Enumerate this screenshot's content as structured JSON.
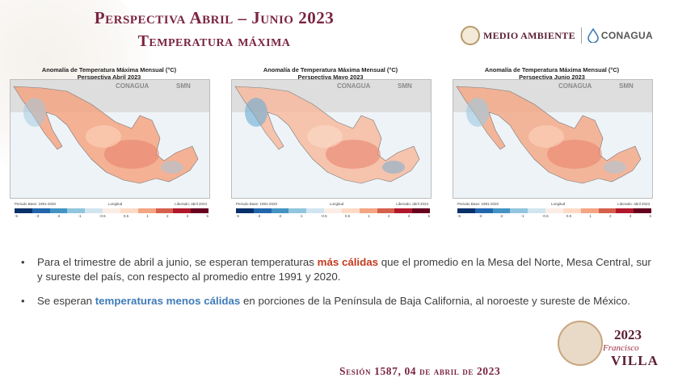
{
  "header": {
    "title_line1": "Perspectiva Abril – Junio 2023",
    "title_line2": "Temperatura máxima"
  },
  "logos": {
    "medio_ambiente": "MEDIO AMBIENTE",
    "conagua": "CONAGUA"
  },
  "maps": [
    {
      "title_line1": "Anomalía de Temperatura Máxima Mensual (°C)",
      "title_line2": "Perspectiva Abril 2023",
      "brand_left": "CONAGUA",
      "brand_right": "SMN",
      "period": "Periodo Base: 1991-2020",
      "release": "Liberado: abril 2023",
      "xaxis": "Longitud"
    },
    {
      "title_line1": "Anomalía de Temperatura Máxima Mensual (°C)",
      "title_line2": "Perspectiva Mayo 2023",
      "brand_left": "CONAGUA",
      "brand_right": "SMN",
      "period": "Periodo Base: 1991-2020",
      "release": "Liberado: abril 2023",
      "xaxis": "Longitud"
    },
    {
      "title_line1": "Anomalía de Temperatura Máxima Mensual (°C)",
      "title_line2": "Perspectiva Junio 2023",
      "brand_left": "CONAGUA",
      "brand_right": "SMN",
      "period": "Periodo Base: 1991-2020",
      "release": "Liberado: abril 2023",
      "xaxis": "Longitud"
    }
  ],
  "scale_ticks": [
    "-5",
    "-3",
    "-2",
    "-1",
    "-0.5",
    "0.5",
    "1",
    "2",
    "3",
    "5"
  ],
  "scale_colors": [
    "#08306b",
    "#2166ac",
    "#4393c3",
    "#92c5de",
    "#d1e5f0",
    "#fbeee6",
    "#fddbc7",
    "#f4a582",
    "#d6604d",
    "#b2182b",
    "#67001f"
  ],
  "bullets": [
    {
      "before": "Para el trimestre de abril a junio, se esperan temperaturas ",
      "highlight": "más cálidas",
      "after": " que el promedio en la Mesa del Norte, Mesa Central, sur y sureste del país, con respecto al promedio entre 1991 y 2020."
    },
    {
      "before": "Se esperan ",
      "highlight": "temperaturas menos cálidas",
      "after": " en porciones de la Península de Baja California, al noroeste y sureste de México."
    }
  ],
  "footer": {
    "session": "Sesión 1587, 04 de abril de 2023"
  },
  "branding": {
    "year": "2023",
    "subtitle": "Francisco",
    "name": "VILLA"
  }
}
